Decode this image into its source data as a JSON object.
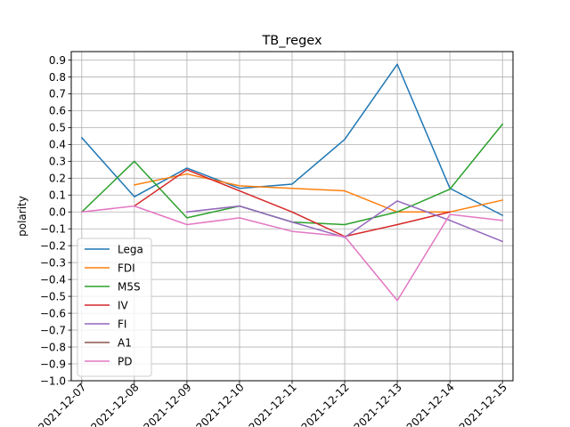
{
  "chart_data": {
    "type": "line",
    "title": "TB_regex",
    "xlabel": "",
    "ylabel": "polarity",
    "ylim": [
      -1.0,
      0.95
    ],
    "yticks": [
      -1.0,
      -0.9,
      -0.8,
      -0.7,
      -0.6,
      -0.5,
      -0.4,
      -0.3,
      -0.2,
      -0.1,
      0.0,
      0.1,
      0.2,
      0.3,
      0.4,
      0.5,
      0.6,
      0.7,
      0.8,
      0.9
    ],
    "ytick_labels": [
      "−1.0",
      "−0.9",
      "−0.8",
      "−0.7",
      "−0.6",
      "−0.5",
      "−0.4",
      "−0.3",
      "−0.2",
      "−0.1",
      "0.0",
      "0.1",
      "0.2",
      "0.3",
      "0.4",
      "0.5",
      "0.6",
      "0.7",
      "0.8",
      "0.9"
    ],
    "x": [
      "2021-12-07",
      "2021-12-08",
      "2021-12-09",
      "2021-12-10",
      "2021-12-11",
      "2021-12-12",
      "2021-12-13",
      "2021-12-14",
      "2021-12-15"
    ],
    "x_tick_labels": [
      "2021-12-07",
      "2021-12-08",
      "2021-12-09",
      "2021-12-10",
      "2021-12-11",
      "2021-12-12",
      "2021-12-13",
      "2021-12-14",
      "2021-12-15"
    ],
    "grid": true,
    "legend_position": "lower-left",
    "series": [
      {
        "name": "Lega",
        "color": "#1f77b4",
        "values": [
          0.44,
          0.09,
          0.26,
          0.14,
          0.165,
          0.43,
          0.875,
          0.14,
          -0.02
        ]
      },
      {
        "name": "FDI",
        "color": "#ff7f0e",
        "values": [
          null,
          0.16,
          0.225,
          0.155,
          0.14,
          0.125,
          0.0,
          0.0,
          0.07
        ]
      },
      {
        "name": "M5S",
        "color": "#2ca02c",
        "values": [
          0.0,
          0.3,
          -0.035,
          0.035,
          -0.06,
          -0.075,
          0.0,
          0.135,
          0.52
        ]
      },
      {
        "name": "IV",
        "color": "#d62728",
        "values": [
          null,
          0.035,
          0.25,
          0.125,
          0.0,
          -0.145,
          -0.075,
          0.0,
          null
        ]
      },
      {
        "name": "FI",
        "color": "#9467bd",
        "values": [
          null,
          null,
          0.0,
          0.035,
          -0.06,
          -0.15,
          0.065,
          -0.05,
          -0.175
        ]
      },
      {
        "name": "A1",
        "color": "#8c564b",
        "values": [
          null,
          null,
          null,
          null,
          null,
          null,
          null,
          null,
          null
        ]
      },
      {
        "name": "PD",
        "color": "#e377c2",
        "values": [
          0.0,
          0.035,
          -0.075,
          -0.035,
          -0.115,
          -0.145,
          -0.525,
          -0.015,
          -0.05
        ]
      }
    ]
  }
}
